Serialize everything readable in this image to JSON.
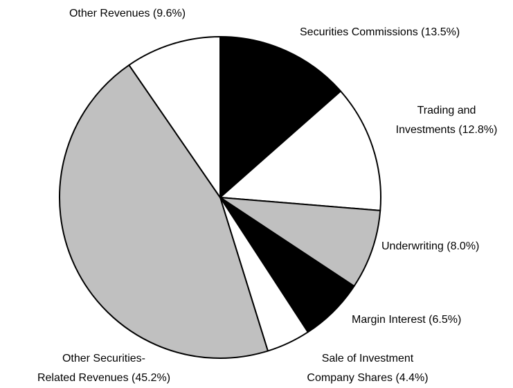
{
  "chart_data": {
    "type": "pie",
    "values": [
      13.5,
      12.8,
      8.0,
      6.5,
      4.4,
      45.2,
      9.6
    ],
    "value_labels": [
      [
        "Securities Commissions (13.5%)"
      ],
      [
        "Trading and",
        "Investments (12.8%)"
      ],
      [
        "Underwriting (8.0%)"
      ],
      [
        "Margin Interest (6.5%)"
      ],
      [
        "Sale of Investment",
        "Company Shares (4.4%)"
      ],
      [
        "Other Securities-",
        "Related Revenues (45.2%)"
      ],
      [
        "Other Revenues (9.6%)"
      ]
    ],
    "colors": [
      "#000000",
      "#ffffff",
      "#c0c0c0",
      "#000000",
      "#ffffff",
      "#c0c0c0",
      "#ffffff"
    ]
  }
}
